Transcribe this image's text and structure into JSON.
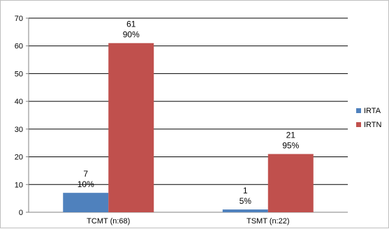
{
  "chart_data": {
    "type": "bar",
    "categories": [
      "TCMT (n:68)",
      "TSMT (n:22)"
    ],
    "series": [
      {
        "name": "IRTA",
        "values": [
          7,
          1
        ],
        "percent_labels": [
          "10%",
          "5%"
        ],
        "color": "#4f81bd"
      },
      {
        "name": "IRTN",
        "values": [
          61,
          21
        ],
        "percent_labels": [
          "90%",
          "95%"
        ],
        "color": "#c0504d"
      }
    ],
    "title": "",
    "xlabel": "",
    "ylabel": "",
    "ylim": [
      0,
      70
    ],
    "yticks": [
      "0",
      "10",
      "20",
      "30",
      "40",
      "50",
      "60",
      "70"
    ],
    "grid": true,
    "legend_position": "right"
  }
}
